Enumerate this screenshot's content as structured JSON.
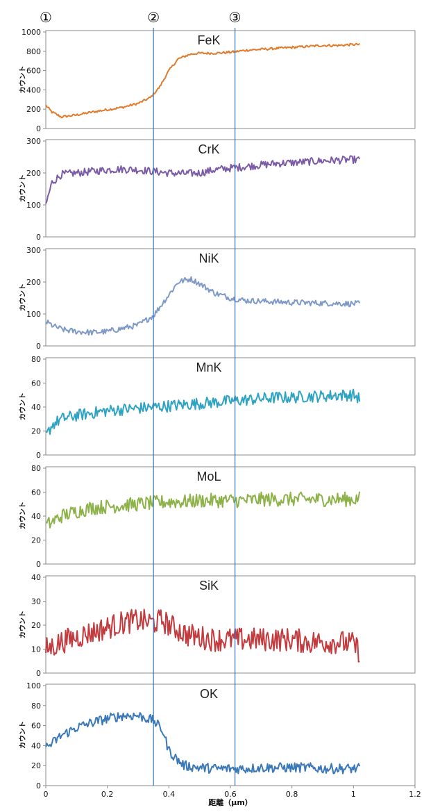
{
  "markers": [
    {
      "label": "①",
      "x": 0.0
    },
    {
      "label": "②",
      "x": 0.35
    },
    {
      "label": "③",
      "x": 0.615
    }
  ],
  "x_axis": {
    "label": "距離（μm）",
    "range": [
      0,
      1.2
    ],
    "ticks": [
      "0",
      "0.2",
      "0.4",
      "0.6",
      "0.8",
      "1",
      "1.2"
    ]
  },
  "ylabel": "カウント",
  "colors": {
    "FeK": "#E07B2C",
    "CrK": "#7B5BA6",
    "NiK": "#7E99C8",
    "MnK": "#2FA3C2",
    "MoL": "#8DB24A",
    "SiK": "#C23B3F",
    "OK": "#3A78B8",
    "marker_line": "#3A78B8"
  },
  "chart_data": [
    {
      "type": "line",
      "title": "FeK",
      "ylabel": "カウント",
      "ylim": [
        0,
        1000
      ],
      "yticks": [
        "0",
        "200",
        "400",
        "600",
        "800",
        "1000"
      ],
      "series": [
        {
          "x": [
            0,
            0.02,
            0.05,
            0.1,
            0.15,
            0.2,
            0.25,
            0.3,
            0.34,
            0.37,
            0.4,
            0.43,
            0.47,
            0.5,
            0.55,
            0.6,
            0.65,
            0.7,
            0.75,
            0.8,
            0.85,
            0.9,
            0.95,
            1.0,
            1.02
          ],
          "y": [
            240,
            170,
            120,
            140,
            170,
            195,
            220,
            260,
            320,
            430,
            600,
            720,
            770,
            780,
            780,
            790,
            810,
            820,
            830,
            840,
            850,
            860,
            860,
            870,
            870
          ]
        }
      ]
    },
    {
      "type": "line",
      "title": "CrK",
      "ylabel": "カウント",
      "ylim": [
        0,
        300
      ],
      "yticks": [
        "0",
        "100",
        "200",
        "300"
      ],
      "series": [
        {
          "x": [
            0,
            0.02,
            0.05,
            0.1,
            0.15,
            0.2,
            0.25,
            0.3,
            0.35,
            0.4,
            0.45,
            0.5,
            0.55,
            0.6,
            0.65,
            0.7,
            0.75,
            0.8,
            0.85,
            0.9,
            0.95,
            1.0,
            1.02
          ],
          "y": [
            100,
            170,
            195,
            200,
            205,
            210,
            212,
            210,
            205,
            200,
            198,
            200,
            210,
            215,
            220,
            225,
            230,
            232,
            235,
            238,
            240,
            242,
            240
          ]
        }
      ]
    },
    {
      "type": "line",
      "title": "NiK",
      "ylabel": "カウント",
      "ylim": [
        0,
        300
      ],
      "yticks": [
        "0",
        "100",
        "200",
        "300"
      ],
      "series": [
        {
          "x": [
            0,
            0.03,
            0.06,
            0.1,
            0.15,
            0.2,
            0.25,
            0.3,
            0.35,
            0.4,
            0.43,
            0.47,
            0.5,
            0.55,
            0.6,
            0.65,
            0.7,
            0.75,
            0.8,
            0.85,
            0.9,
            0.95,
            1.0,
            1.02
          ],
          "y": [
            75,
            60,
            50,
            45,
            42,
            45,
            55,
            65,
            95,
            160,
            200,
            210,
            195,
            165,
            150,
            142,
            140,
            138,
            136,
            135,
            134,
            133,
            132,
            132
          ]
        }
      ]
    },
    {
      "type": "line",
      "title": "MnK",
      "ylabel": "カウント",
      "ylim": [
        0,
        80
      ],
      "yticks": [
        "0",
        "20",
        "40",
        "60",
        "80"
      ],
      "series": [
        {
          "x": [
            0,
            0.02,
            0.05,
            0.1,
            0.15,
            0.2,
            0.25,
            0.3,
            0.35,
            0.4,
            0.45,
            0.5,
            0.55,
            0.6,
            0.65,
            0.7,
            0.75,
            0.8,
            0.85,
            0.9,
            0.95,
            1.0,
            1.02
          ],
          "y": [
            15,
            25,
            30,
            33,
            35,
            37,
            38,
            39,
            40,
            41,
            42,
            43,
            44,
            45,
            46,
            47,
            48,
            48,
            49,
            49,
            50,
            50,
            47
          ]
        }
      ]
    },
    {
      "type": "line",
      "title": "MoL",
      "ylabel": "カウント",
      "ylim": [
        0,
        80
      ],
      "yticks": [
        "0",
        "20",
        "40",
        "60",
        "80"
      ],
      "series": [
        {
          "x": [
            0,
            0.02,
            0.05,
            0.1,
            0.15,
            0.2,
            0.25,
            0.3,
            0.35,
            0.4,
            0.45,
            0.5,
            0.55,
            0.6,
            0.65,
            0.7,
            0.75,
            0.8,
            0.85,
            0.9,
            0.95,
            1.0,
            1.02
          ],
          "y": [
            32,
            35,
            40,
            44,
            47,
            48,
            49,
            50,
            51,
            52,
            52,
            53,
            53,
            53,
            53,
            54,
            54,
            54,
            54,
            54,
            54,
            54,
            55
          ]
        }
      ]
    },
    {
      "type": "line",
      "title": "SiK",
      "ylabel": "カウント",
      "ylim": [
        0,
        40
      ],
      "yticks": [
        "0",
        "10",
        "20",
        "30",
        "40"
      ],
      "series": [
        {
          "x": [
            0,
            0.02,
            0.05,
            0.1,
            0.15,
            0.2,
            0.25,
            0.3,
            0.35,
            0.38,
            0.4,
            0.43,
            0.46,
            0.5,
            0.55,
            0.6,
            0.65,
            0.7,
            0.75,
            0.8,
            0.85,
            0.9,
            0.95,
            1.0,
            1.02
          ],
          "y": [
            10,
            11,
            13,
            15,
            17,
            19,
            21,
            22,
            21,
            22,
            20,
            18,
            16,
            15,
            14,
            14,
            14,
            14,
            14,
            14,
            13,
            13,
            13,
            12,
            9
          ]
        }
      ]
    },
    {
      "type": "line",
      "title": "OK",
      "ylabel": "カウント",
      "ylim": [
        0,
        100
      ],
      "yticks": [
        "0",
        "20",
        "40",
        "60",
        "80",
        "100"
      ],
      "series": [
        {
          "x": [
            0,
            0.02,
            0.05,
            0.1,
            0.15,
            0.2,
            0.25,
            0.3,
            0.35,
            0.38,
            0.4,
            0.43,
            0.45,
            0.5,
            0.55,
            0.6,
            0.65,
            0.7,
            0.75,
            0.8,
            0.85,
            0.9,
            0.95,
            1.0,
            1.02
          ],
          "y": [
            38,
            42,
            50,
            58,
            63,
            67,
            70,
            70,
            65,
            55,
            35,
            25,
            20,
            18,
            17,
            17,
            17,
            18,
            18,
            18,
            18,
            17,
            17,
            17,
            17
          ]
        }
      ]
    }
  ]
}
